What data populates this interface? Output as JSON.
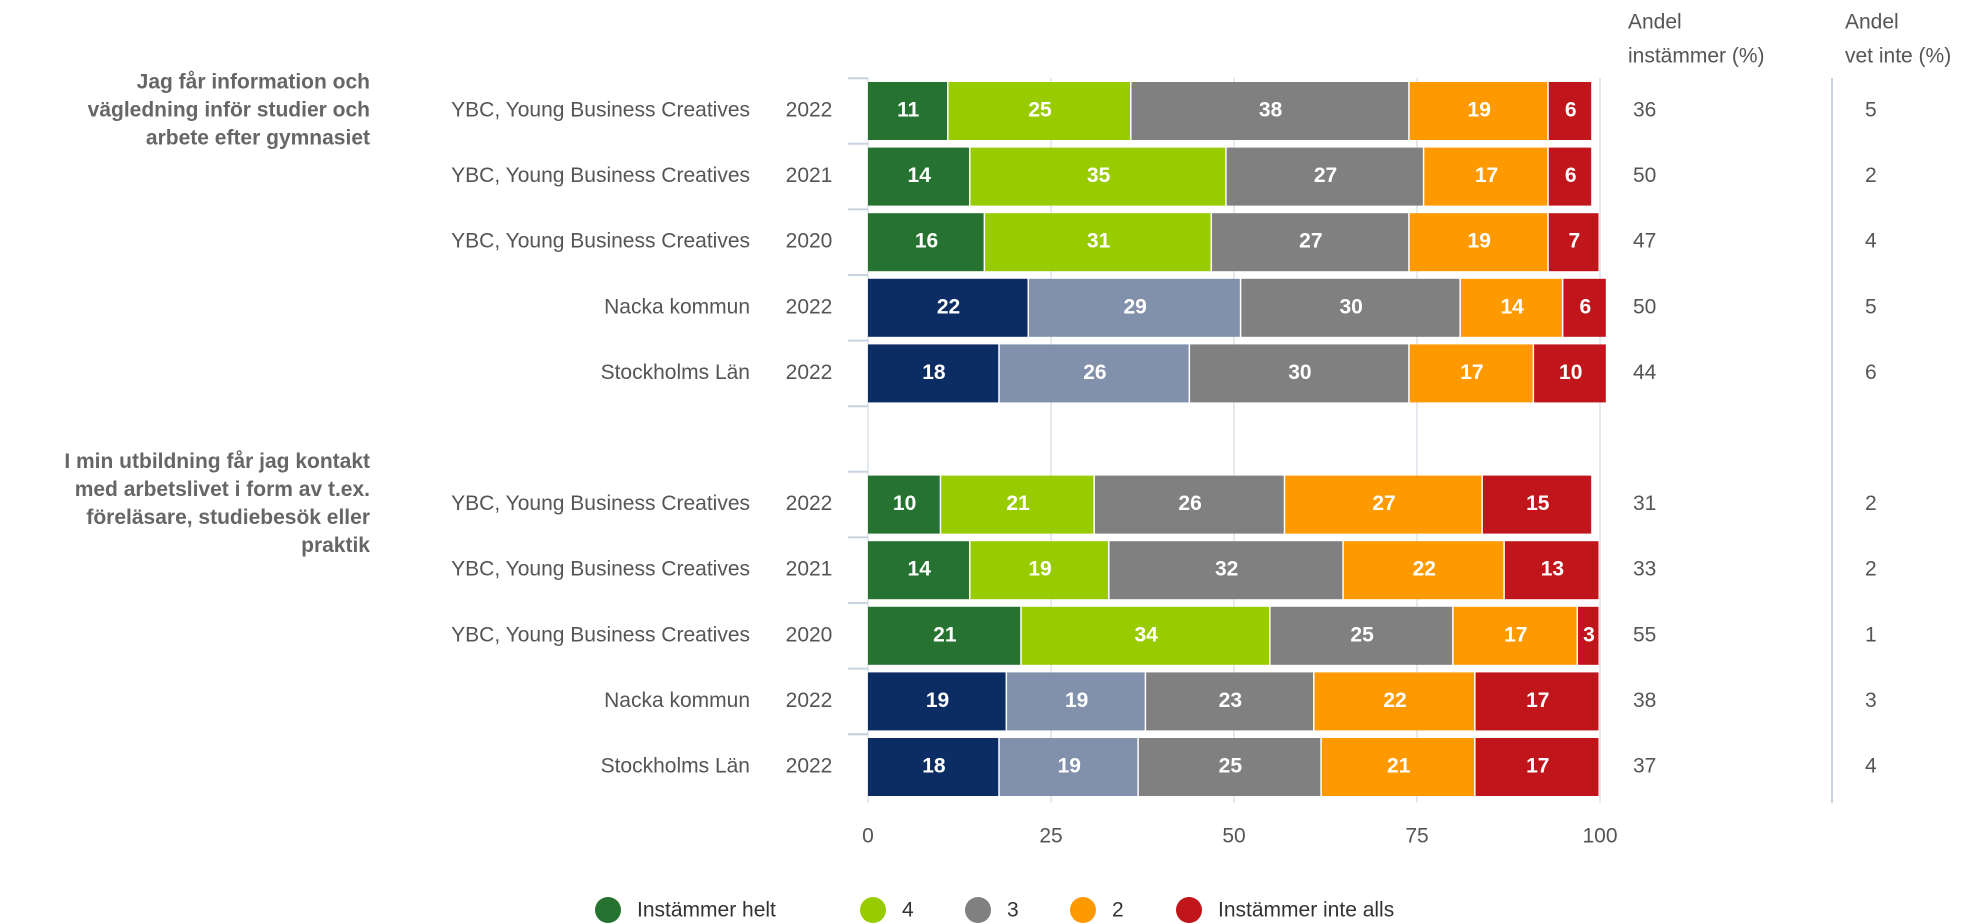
{
  "chart_data": {
    "type": "stacked_bar_horizontal",
    "xlim": [
      0,
      100
    ],
    "xticks": [
      0,
      25,
      50,
      75,
      100
    ],
    "grid": true,
    "headers": [
      [
        "Andel",
        "instämmer (%)"
      ],
      [
        "Andel",
        "vet inte (%)"
      ]
    ],
    "series": [
      {
        "name": "Instämmer helt",
        "color": "#267331"
      },
      {
        "name": "4",
        "color": "#99cc00"
      },
      {
        "name": "3",
        "color": "#808080"
      },
      {
        "name": "2",
        "color": "#ff9900"
      },
      {
        "name": "Instämmer inte alls",
        "color": "#c0151a"
      }
    ],
    "groups": [
      {
        "title": [
          "Jag får information och",
          "vägledning inför studier och",
          "arbete efter gymnasiet"
        ],
        "rows": [
          {
            "name": "YBC, Young Business Creatives",
            "year": "2022",
            "values": [
              11,
              25,
              38,
              19,
              6
            ],
            "agree": 36,
            "dont_know": 5,
            "colors": [
              "#267331",
              "#99cc00",
              "#808080",
              "#ff9900",
              "#c0151a"
            ]
          },
          {
            "name": "YBC, Young Business Creatives",
            "year": "2021",
            "values": [
              14,
              35,
              27,
              17,
              6
            ],
            "agree": 50,
            "dont_know": 2,
            "colors": [
              "#267331",
              "#99cc00",
              "#808080",
              "#ff9900",
              "#c0151a"
            ]
          },
          {
            "name": "YBC, Young Business Creatives",
            "year": "2020",
            "values": [
              16,
              31,
              27,
              19,
              7
            ],
            "agree": 47,
            "dont_know": 4,
            "colors": [
              "#267331",
              "#99cc00",
              "#808080",
              "#ff9900",
              "#c0151a"
            ]
          },
          {
            "name": "Nacka kommun",
            "year": "2022",
            "values": [
              22,
              29,
              30,
              14,
              6
            ],
            "agree": 50,
            "dont_know": 5,
            "colors": [
              "#0b2d63",
              "#8190ab",
              "#808080",
              "#ff9900",
              "#c0151a"
            ]
          },
          {
            "name": "Stockholms Län",
            "year": "2022",
            "values": [
              18,
              26,
              30,
              17,
              10
            ],
            "agree": 44,
            "dont_know": 6,
            "colors": [
              "#0b2d63",
              "#8190ab",
              "#808080",
              "#ff9900",
              "#c0151a"
            ]
          }
        ]
      },
      {
        "title": [
          "I min utbildning får jag kontakt",
          "med arbetslivet i form av t.ex.",
          "föreläsare, studiebesök eller",
          "praktik"
        ],
        "rows": [
          {
            "name": "YBC, Young Business Creatives",
            "year": "2022",
            "values": [
              10,
              21,
              26,
              27,
              15
            ],
            "agree": 31,
            "dont_know": 2,
            "colors": [
              "#267331",
              "#99cc00",
              "#808080",
              "#ff9900",
              "#c0151a"
            ]
          },
          {
            "name": "YBC, Young Business Creatives",
            "year": "2021",
            "values": [
              14,
              19,
              32,
              22,
              13
            ],
            "agree": 33,
            "dont_know": 2,
            "colors": [
              "#267331",
              "#99cc00",
              "#808080",
              "#ff9900",
              "#c0151a"
            ]
          },
          {
            "name": "YBC, Young Business Creatives",
            "year": "2020",
            "values": [
              21,
              34,
              25,
              17,
              3
            ],
            "agree": 55,
            "dont_know": 1,
            "colors": [
              "#267331",
              "#99cc00",
              "#808080",
              "#ff9900",
              "#c0151a"
            ]
          },
          {
            "name": "Nacka kommun",
            "year": "2022",
            "values": [
              19,
              19,
              23,
              22,
              17
            ],
            "agree": 38,
            "dont_know": 3,
            "colors": [
              "#0b2d63",
              "#8190ab",
              "#808080",
              "#ff9900",
              "#c0151a"
            ]
          },
          {
            "name": "Stockholms Län",
            "year": "2022",
            "values": [
              18,
              19,
              25,
              21,
              17
            ],
            "agree": 37,
            "dont_know": 4,
            "colors": [
              "#0b2d63",
              "#8190ab",
              "#808080",
              "#ff9900",
              "#c0151a"
            ]
          }
        ]
      }
    ]
  }
}
